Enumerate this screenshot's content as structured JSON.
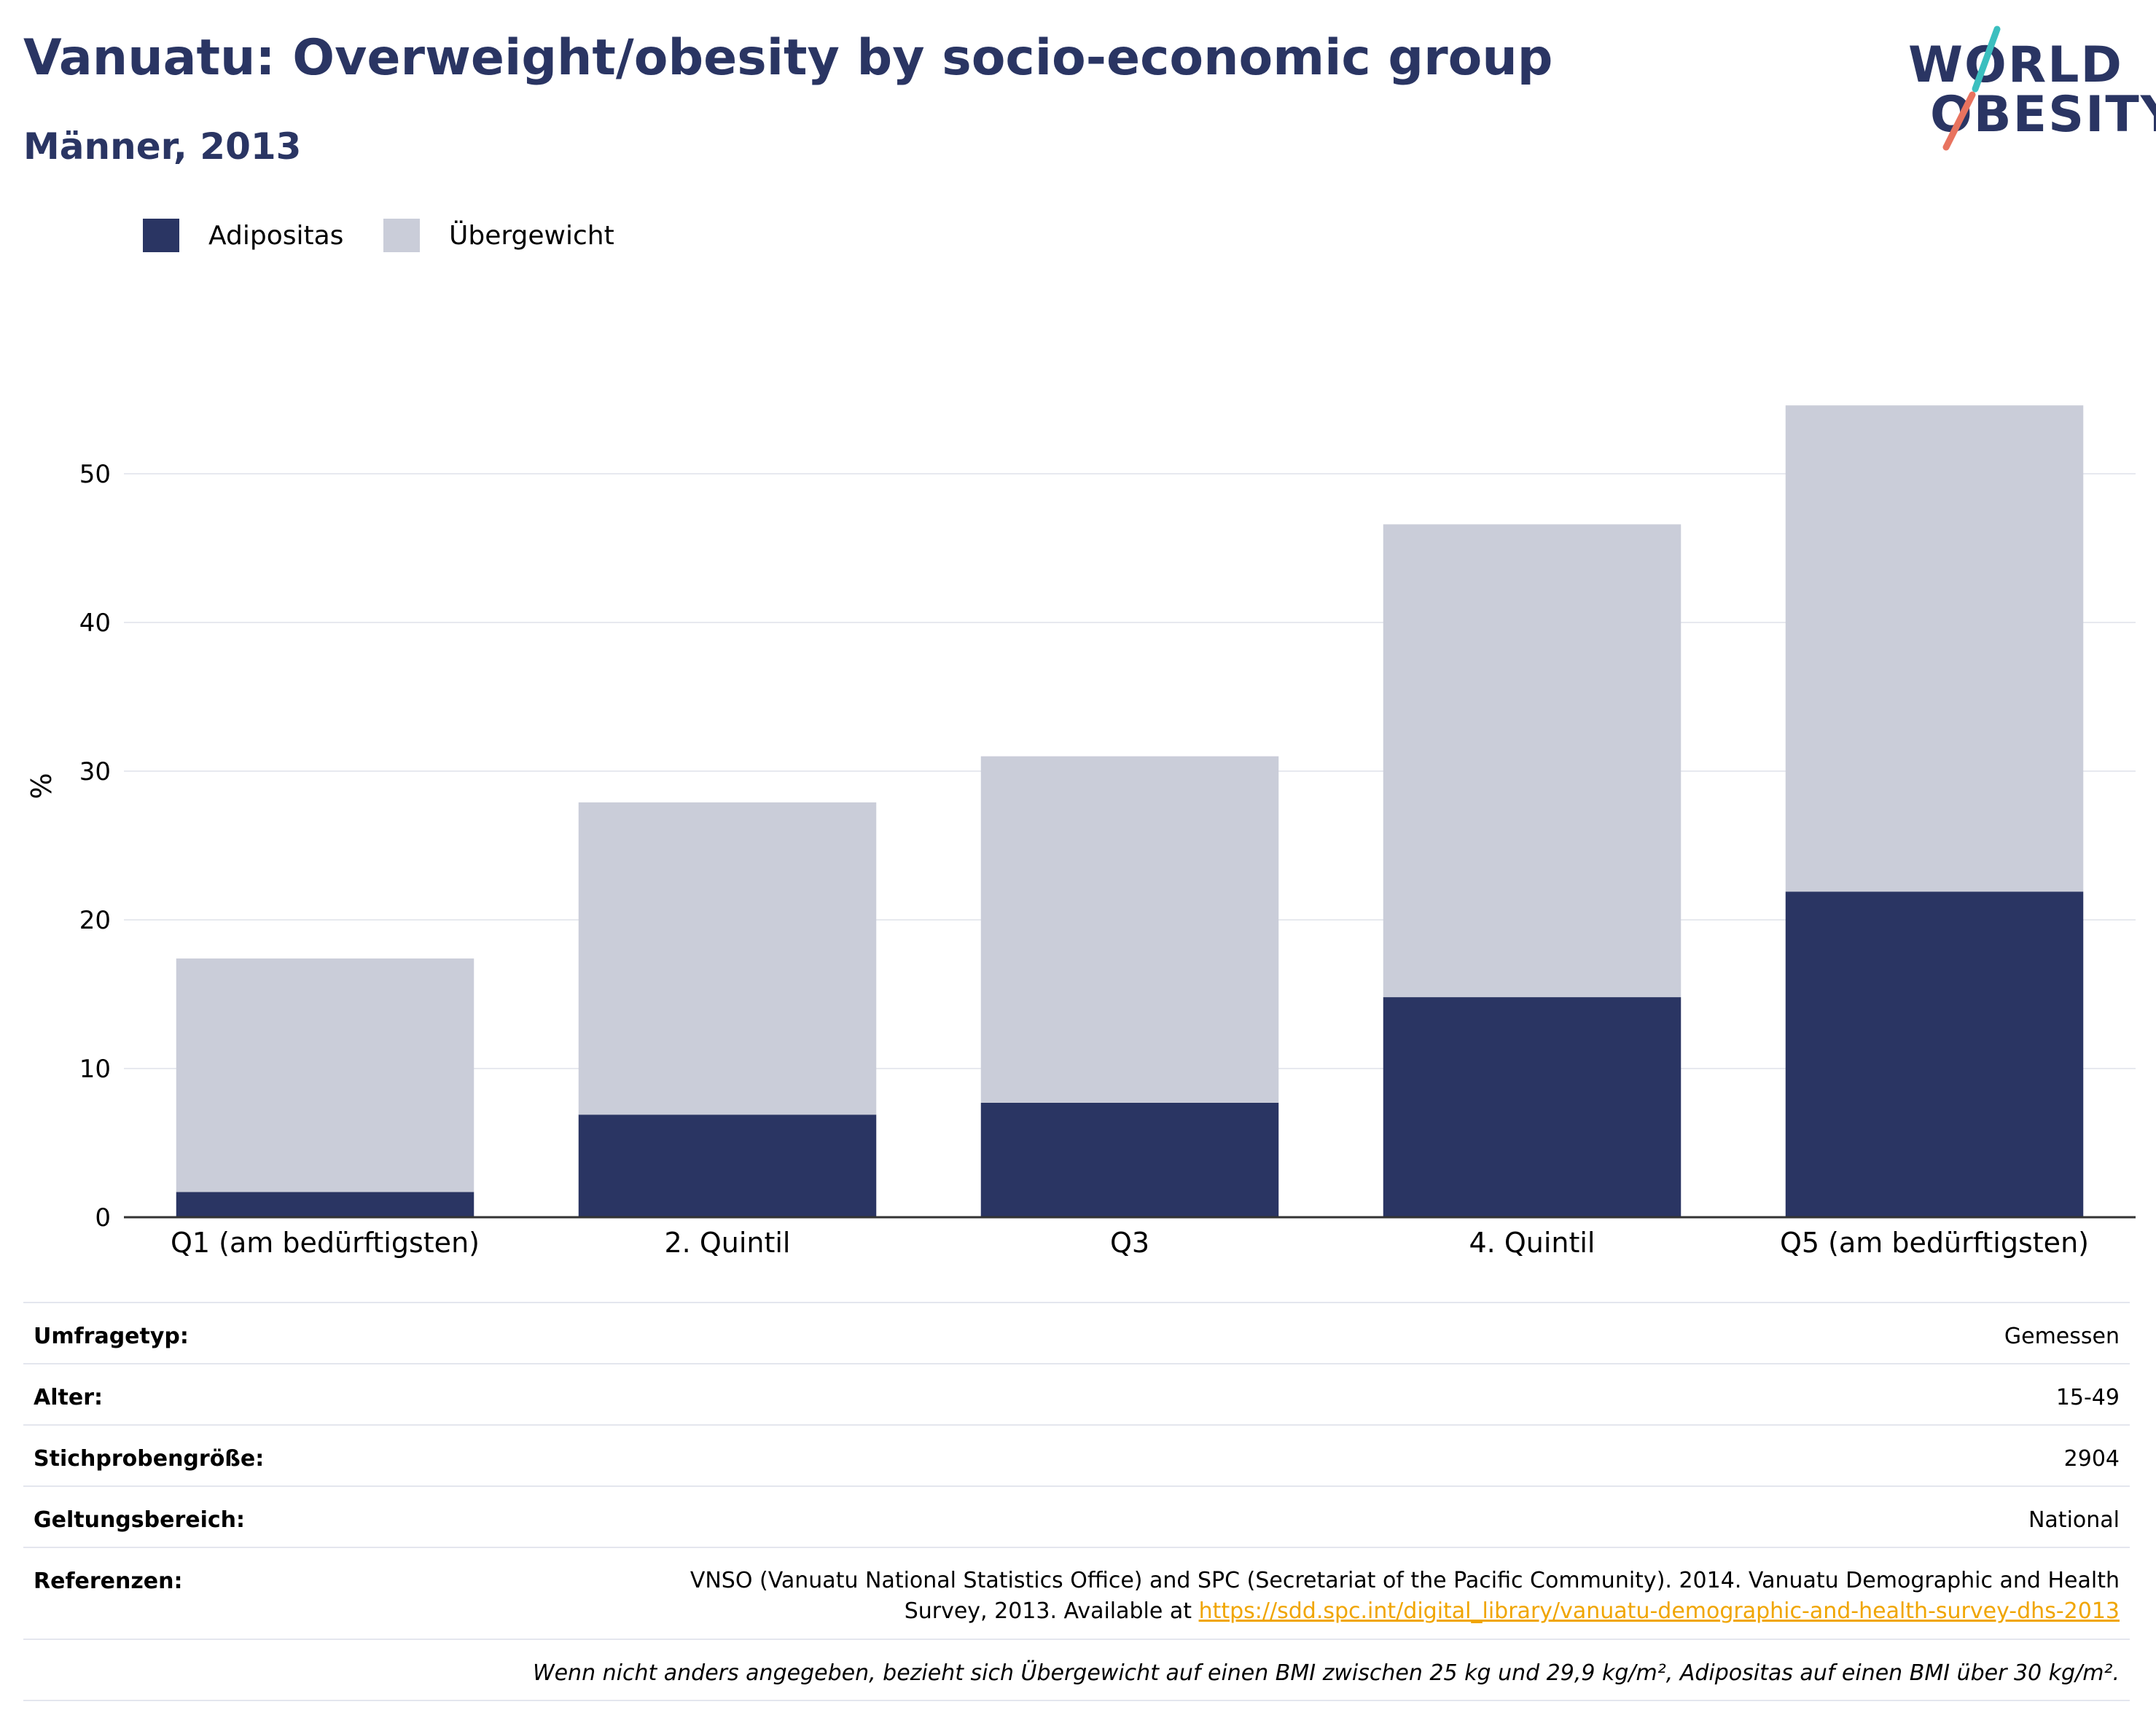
{
  "title": "Vanuatu: Overweight/obesity by socio-economic group",
  "subtitle": "Männer, 2013",
  "logo": {
    "line1": "WORLD",
    "line2": "OBESITY"
  },
  "colors": {
    "obesity": "#2a3563",
    "overweight": "#cacdd9",
    "title": "#2a3563",
    "link": "#f0a500"
  },
  "chart_data": {
    "type": "bar",
    "stacked": true,
    "categories": [
      "Q1 (am bedürftigsten)",
      "2. Quintil",
      "Q3",
      "4. Quintil",
      "Q5 (am bedürftigsten)"
    ],
    "series": [
      {
        "name": "Adipositas",
        "values": [
          1.7,
          6.9,
          7.7,
          14.8,
          21.9
        ]
      },
      {
        "name": "Übergewicht",
        "values": [
          15.7,
          21.0,
          23.3,
          31.8,
          32.7
        ]
      }
    ],
    "ylabel": "%",
    "yticks": [
      0,
      10,
      20,
      30,
      40,
      50
    ],
    "ylim": [
      0,
      58
    ],
    "grid": true,
    "legend_position": "top-left"
  },
  "info": {
    "survey_type": {
      "label": "Umfragetyp:",
      "value": "Gemessen"
    },
    "age": {
      "label": "Alter:",
      "value": "15-49"
    },
    "sample_size": {
      "label": "Stichprobengröße:",
      "value": "2904"
    },
    "scope": {
      "label": "Geltungsbereich:",
      "value": "National"
    },
    "references": {
      "label": "Referenzen:",
      "line1": "VNSO (Vanuatu National Statistics Office) and SPC (Secretariat of the Pacific Community). 2014. Vanuatu Demographic and Health",
      "line2_prefix": "Survey, 2013. Available at ",
      "link": "https://sdd.spc.int/digital_library/vanuatu-demographic-and-health-survey-dhs-2013"
    },
    "note": "Wenn nicht anders angegeben, bezieht sich Übergewicht auf einen BMI zwischen 25 kg und 29,9 kg/m², Adipositas auf einen BMI über 30 kg/m²."
  }
}
